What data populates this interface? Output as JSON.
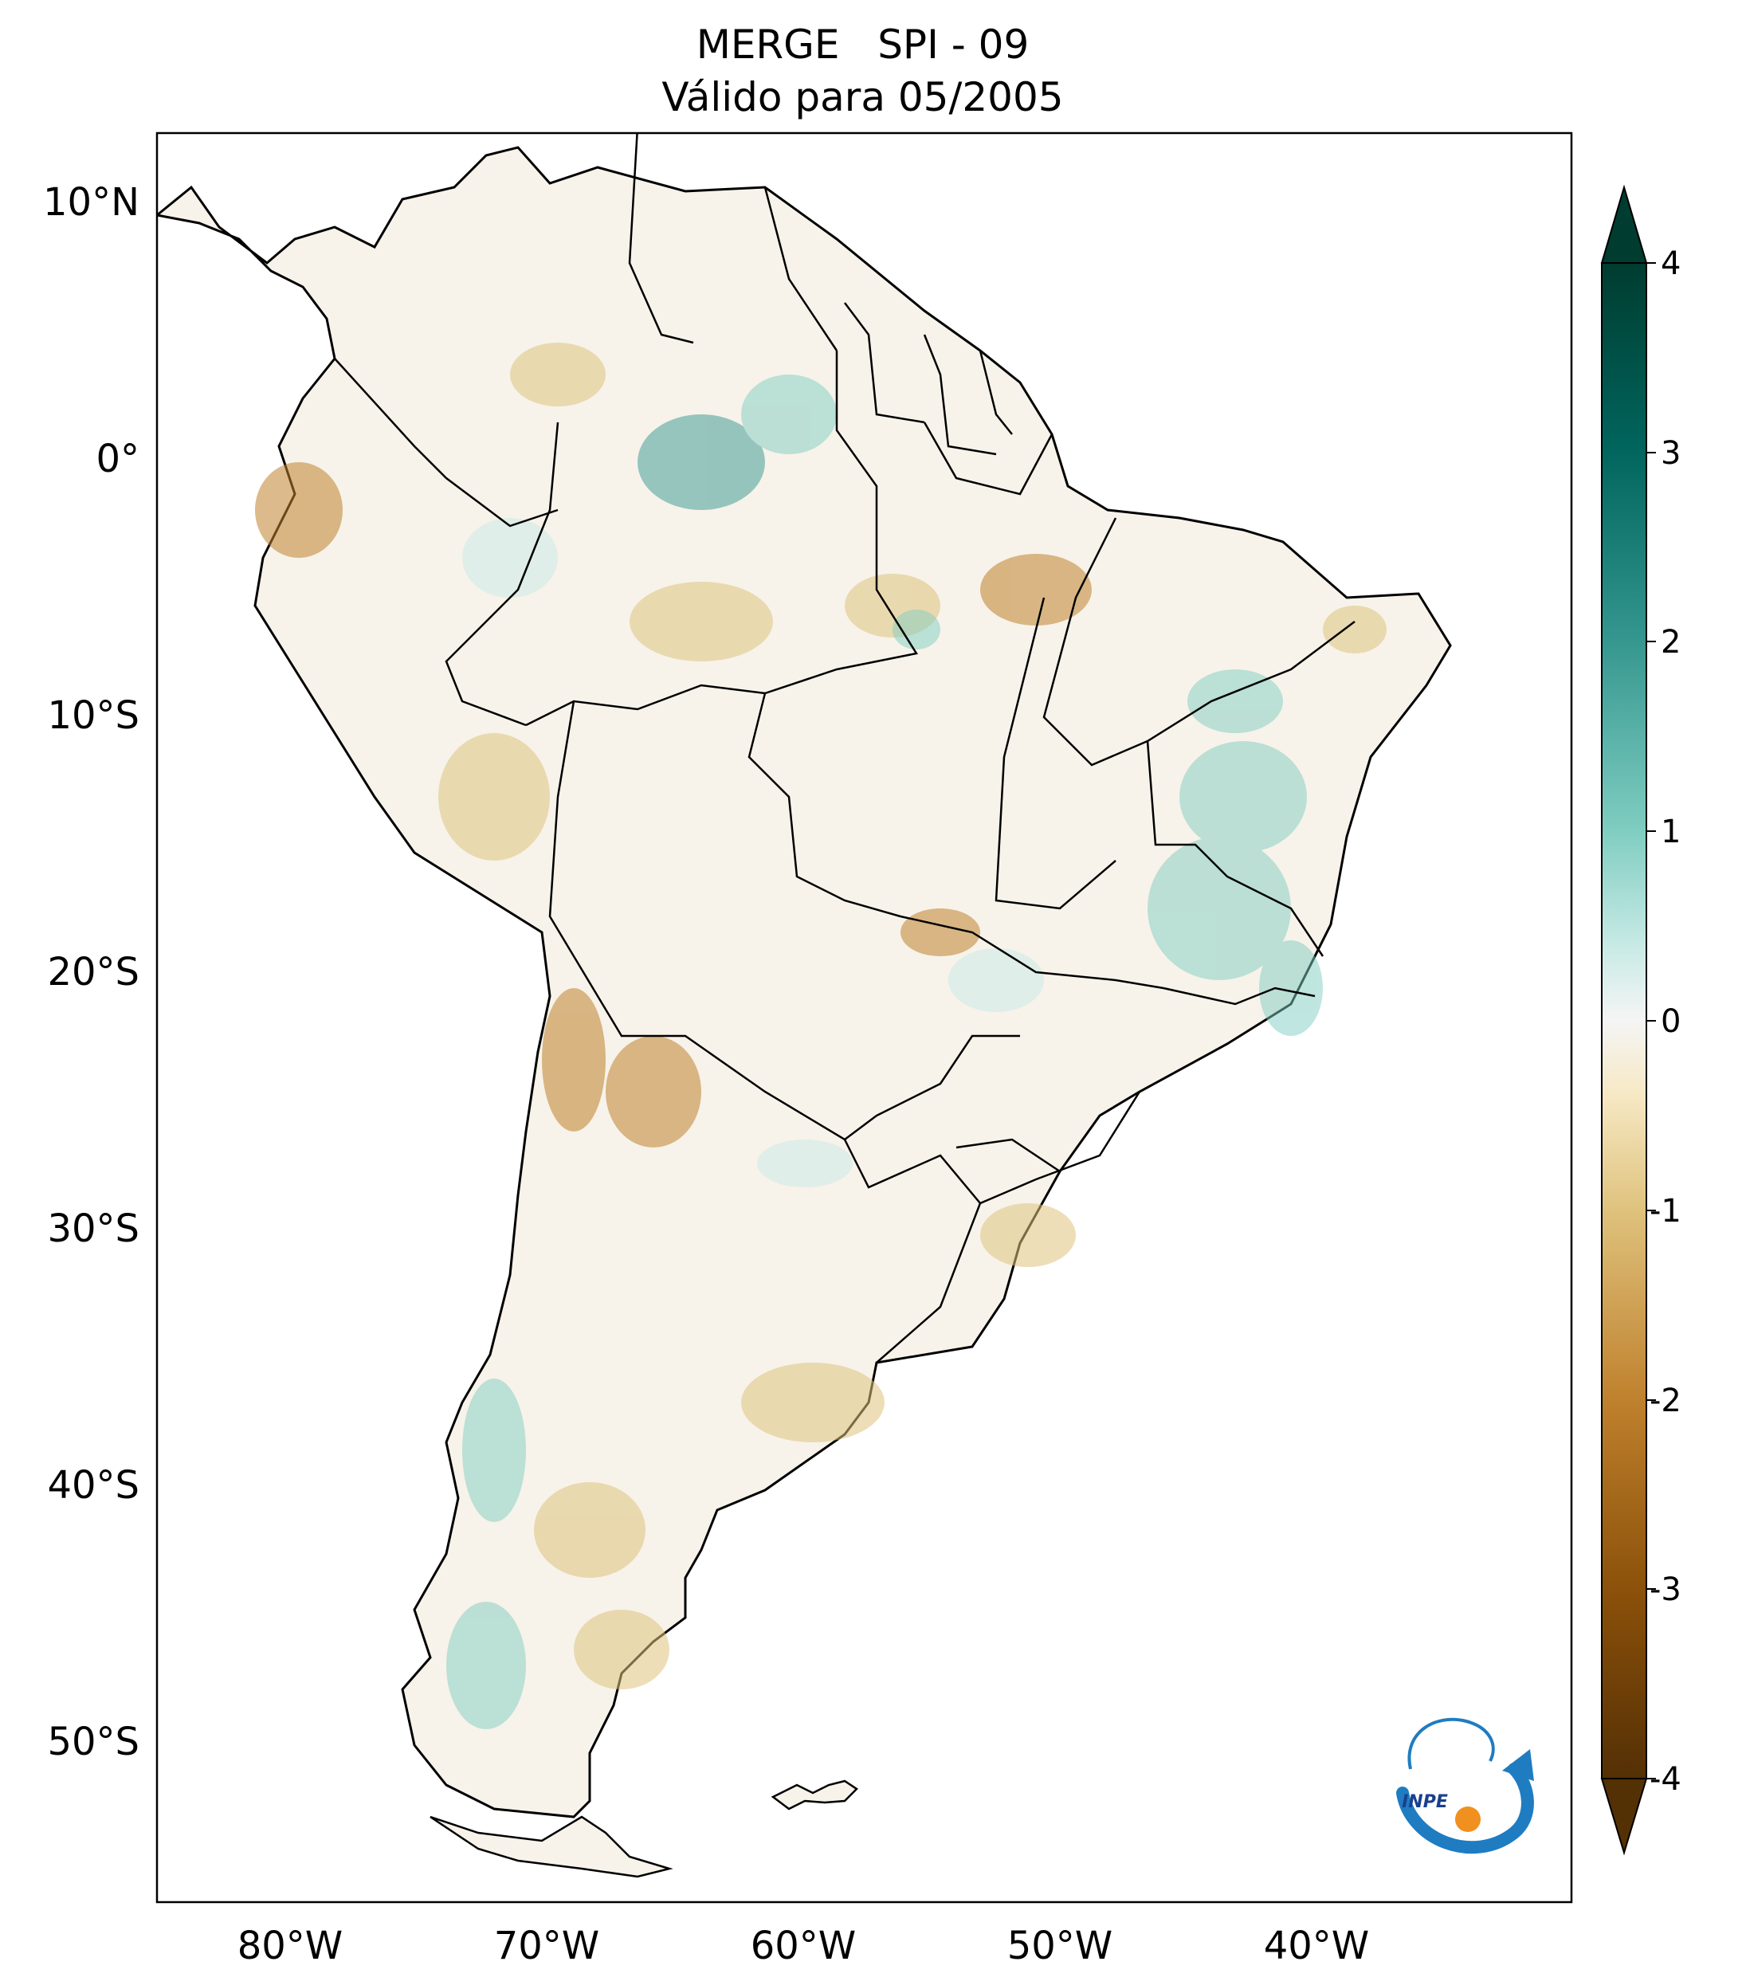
{
  "title": {
    "line1": "MERGE   SPI - 09",
    "line2": "Válido para 05/2005"
  },
  "map": {
    "lat_labels": [
      "10°N",
      "0°",
      "10°S",
      "20°S",
      "30°S",
      "40°S",
      "50°S"
    ],
    "lon_labels": [
      "80°W",
      "70°W",
      "60°W",
      "50°W",
      "40°W"
    ]
  },
  "colorbar": {
    "ticks": [
      "4",
      "3",
      "2",
      "1",
      "0",
      "-1",
      "-2",
      "-3",
      "-4"
    ],
    "colors": {
      "max": "#003c30",
      "high": "#35978f",
      "mid_high": "#c7eae5",
      "zero": "#f5f5f5",
      "mid_low": "#f6e8c3",
      "low": "#bf812d",
      "min": "#543005"
    }
  },
  "logo": {
    "text": "INPE"
  }
}
